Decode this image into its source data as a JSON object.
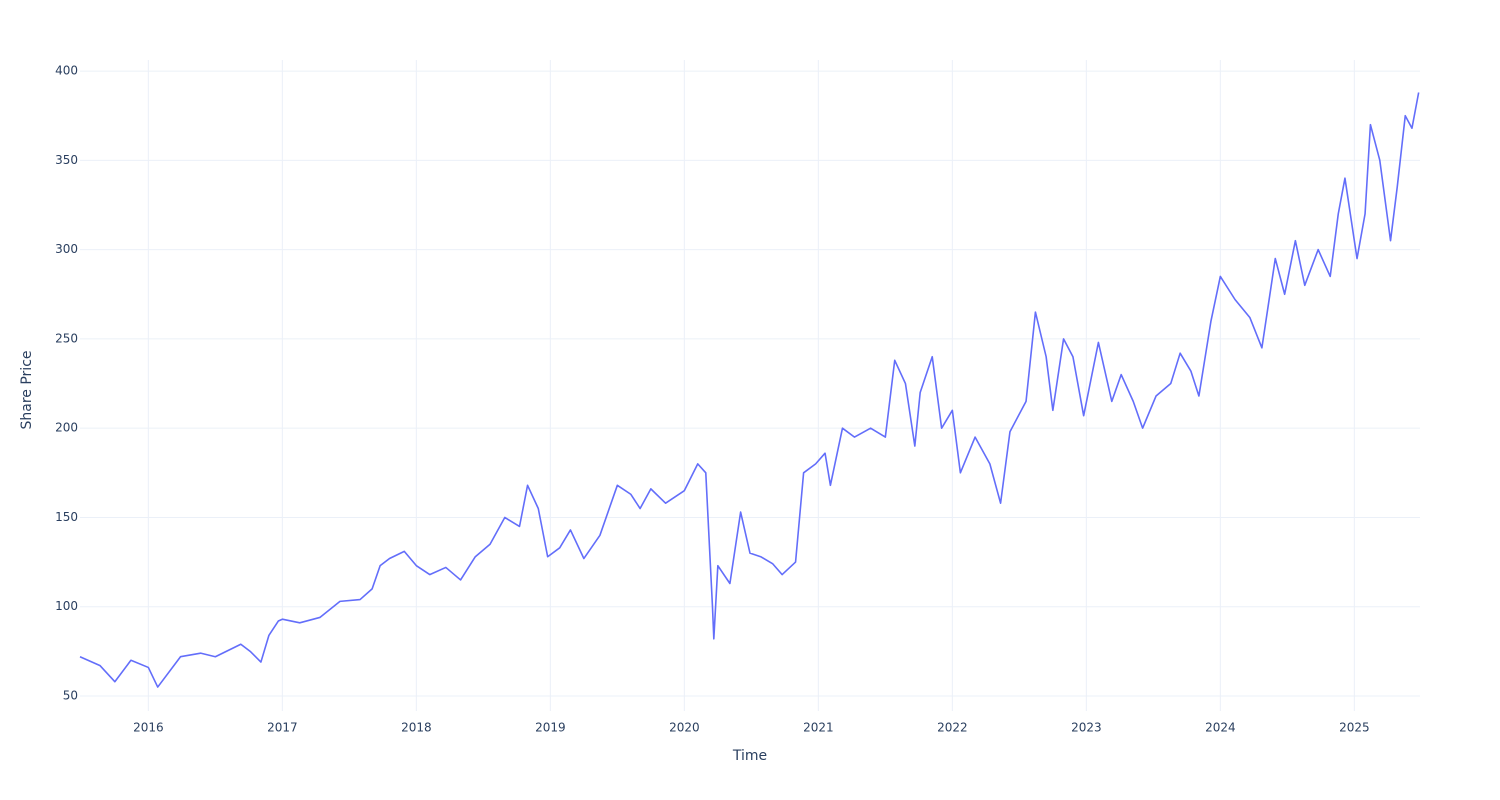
{
  "chart_data": {
    "type": "line",
    "x_label": "Time",
    "y_label": "Share Price",
    "xlim": [
      2015.49,
      2025.49
    ],
    "xticks": [
      2016,
      2017,
      2018,
      2019,
      2020,
      2021,
      2022,
      2023,
      2024,
      2025
    ],
    "ylim": [
      41.6,
      406.2
    ],
    "yticks": [
      50,
      100,
      150,
      200,
      250,
      300,
      350,
      400
    ],
    "grid": true,
    "series": [
      {
        "color": "#636efa",
        "x": [
          2015.49,
          2015.64,
          2015.75,
          2015.87,
          2016.0,
          2016.07,
          2016.24,
          2016.39,
          2016.5,
          2016.69,
          2016.76,
          2016.84,
          2016.9,
          2016.97,
          2017.0,
          2017.13,
          2017.28,
          2017.43,
          2017.58,
          2017.67,
          2017.73,
          2017.8,
          2017.91,
          2018.0,
          2018.1,
          2018.22,
          2018.33,
          2018.44,
          2018.55,
          2018.66,
          2018.77,
          2018.83,
          2018.91,
          2018.98,
          2019.07,
          2019.15,
          2019.25,
          2019.37,
          2019.5,
          2019.6,
          2019.67,
          2019.75,
          2019.86,
          2020.0,
          2020.1,
          2020.16,
          2020.21,
          2020.22,
          2020.25,
          2020.34,
          2020.42,
          2020.49,
          2020.57,
          2020.66,
          2020.73,
          2020.83,
          2020.89,
          2020.98,
          2021.05,
          2021.09,
          2021.18,
          2021.27,
          2021.39,
          2021.5,
          2021.57,
          2021.65,
          2021.72,
          2021.76,
          2021.85,
          2021.92,
          2022.0,
          2022.06,
          2022.17,
          2022.28,
          2022.36,
          2022.43,
          2022.55,
          2022.62,
          2022.7,
          2022.75,
          2022.83,
          2022.9,
          2022.98,
          2023.09,
          2023.19,
          2023.26,
          2023.35,
          2023.42,
          2023.52,
          2023.63,
          2023.7,
          2023.78,
          2023.84,
          2023.93,
          2024.0,
          2024.11,
          2024.22,
          2024.31,
          2024.41,
          2024.48,
          2024.56,
          2024.63,
          2024.73,
          2024.82,
          2024.88,
          2024.93,
          2025.02,
          2025.08,
          2025.12,
          2025.19,
          2025.27,
          2025.32,
          2025.38,
          2025.43,
          2025.48
        ],
        "values": [
          72,
          67,
          58,
          70,
          66,
          55,
          72,
          74,
          72,
          79,
          75,
          69,
          84,
          92,
          93,
          91,
          94,
          103,
          104,
          110,
          123,
          127,
          131,
          123,
          118,
          122,
          115,
          128,
          135,
          150,
          145,
          168,
          155,
          128,
          133,
          143,
          127,
          140,
          168,
          163,
          155,
          166,
          158,
          165,
          180,
          175,
          100,
          82,
          123,
          113,
          153,
          130,
          128,
          124,
          118,
          125,
          175,
          180,
          186,
          168,
          200,
          195,
          200,
          195,
          238,
          225,
          190,
          220,
          240,
          200,
          210,
          175,
          195,
          180,
          158,
          198,
          215,
          265,
          240,
          210,
          250,
          240,
          207,
          248,
          215,
          230,
          215,
          200,
          218,
          225,
          242,
          232,
          218,
          260,
          285,
          272,
          262,
          245,
          295,
          275,
          305,
          280,
          300,
          285,
          320,
          340,
          295,
          320,
          370,
          350,
          305,
          335,
          375,
          368,
          388
        ]
      }
    ]
  }
}
